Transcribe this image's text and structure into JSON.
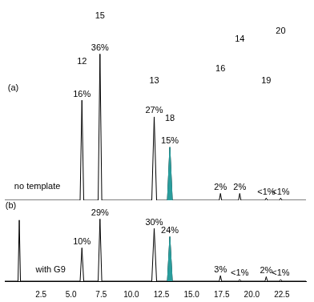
{
  "chart_data": [
    {
      "type": "line",
      "x": [
        -0.5,
        5.75,
        5.9,
        6.05,
        7.25,
        7.4,
        7.55,
        11.7,
        11.9,
        12.1,
        13.0,
        13.2,
        13.4,
        17.3,
        17.4,
        17.5,
        18.9,
        19.0,
        19.1,
        21.1,
        21.2,
        21.3,
        22.3,
        22.4,
        22.5,
        24.5
      ],
      "series": [
        {
          "type": "area",
          "color": "#2a9d9d",
          "values": [
            null,
            null,
            null,
            null,
            null,
            null,
            null,
            null,
            null,
            null,
            0,
            70,
            0,
            null,
            null,
            null,
            null,
            null,
            null,
            null,
            null,
            null,
            null,
            null,
            null,
            null
          ]
        },
        {
          "type": "line",
          "color": "#000000",
          "values": [
            0,
            0,
            132,
            0,
            0,
            193,
            0,
            0,
            110,
            0,
            0,
            70,
            0,
            0,
            9,
            0,
            0,
            9,
            0,
            0,
            3,
            0,
            0,
            3,
            0,
            0
          ]
        }
      ],
      "xlim": [
        -0.5,
        24.5
      ],
      "xticks": [
        2.5,
        {
          "value": 5,
          "label": "5.0"
        },
        7.5,
        {
          "value": 10,
          "label": "10.0"
        },
        12.5,
        {
          "value": 15,
          "label": "15.0"
        },
        17.5,
        {
          "value": 20,
          "label": "20.0"
        },
        22.5
      ],
      "ylim": [
        0,
        260
      ],
      "grid": false,
      "tick_labels": false,
      "annotations": [
        {
          "text": "(a)",
          "x": 0.2,
          "y": 140
        },
        {
          "text": "no template",
          "x": 2.2,
          "y": 10
        },
        {
          "text": "16%",
          "x": 5.9,
          "y": 132
        },
        {
          "text": "36%",
          "x": 7.4,
          "y": 193
        },
        {
          "text": "27%",
          "x": 11.9,
          "y": 110
        },
        {
          "text": "15%",
          "x": 13.2,
          "y": 70
        },
        {
          "text": "2%",
          "x": 17.4,
          "y": 9
        },
        {
          "text": "2%",
          "x": 19.0,
          "y": 9
        },
        {
          "text": "<1%",
          "x": 21.2,
          "y": 3
        },
        {
          "text": "<1%",
          "x": 22.4,
          "y": 3
        },
        {
          "text": "12",
          "x": 5.9,
          "y": 175
        },
        {
          "text": "15",
          "x": 7.4,
          "y": 235
        },
        {
          "text": "13",
          "x": 11.9,
          "y": 150
        },
        {
          "text": "18",
          "x": 13.2,
          "y": 100
        },
        {
          "text": "16",
          "x": 17.4,
          "y": 165
        },
        {
          "text": "14",
          "x": 19.0,
          "y": 205
        },
        {
          "text": "19",
          "x": 21.2,
          "y": 150
        },
        {
          "text": "20",
          "x": 22.4,
          "y": 215
        }
      ]
    },
    {
      "type": "line",
      "x": [
        -0.5,
        0.6,
        0.7,
        0.8,
        5.75,
        5.9,
        6.05,
        7.25,
        7.4,
        7.55,
        11.7,
        11.9,
        12.1,
        13.0,
        13.2,
        13.4,
        17.3,
        17.4,
        17.5,
        18.9,
        19.0,
        19.1,
        21.1,
        21.2,
        21.3,
        22.3,
        22.4,
        22.5,
        24.5
      ],
      "series": [
        {
          "type": "area",
          "color": "#2a9d9d",
          "values": [
            null,
            null,
            null,
            null,
            null,
            null,
            null,
            null,
            null,
            null,
            null,
            null,
            null,
            0,
            80,
            0,
            null,
            null,
            null,
            null,
            null,
            null,
            null,
            null,
            null,
            null,
            null,
            null,
            null
          ]
        },
        {
          "type": "line",
          "color": "#000000",
          "values": [
            0,
            0,
            110,
            0,
            0,
            60,
            0,
            0,
            112,
            0,
            0,
            95,
            0,
            0,
            80,
            0,
            0,
            10,
            0,
            0,
            3,
            0,
            0,
            8,
            0,
            0,
            3,
            0,
            0
          ]
        }
      ],
      "xlim": [
        -0.5,
        24.5
      ],
      "xticks": [
        2.5,
        {
          "value": 5,
          "label": "5.0"
        },
        7.5,
        {
          "value": 10,
          "label": "10.0"
        },
        12.5,
        {
          "value": 15,
          "label": "15.0"
        },
        17.5,
        {
          "value": 20,
          "label": "20.0"
        },
        22.5
      ],
      "ylim": [
        0,
        140
      ],
      "grid": false,
      "tick_labels": "x",
      "annotations": [
        {
          "text": "(b)",
          "x": 0.0,
          "y": 125
        },
        {
          "text": "with G9",
          "x": 3.3,
          "y": 10
        },
        {
          "text": "10%",
          "x": 5.9,
          "y": 60
        },
        {
          "text": "29%",
          "x": 7.4,
          "y": 112
        },
        {
          "text": "30%",
          "x": 11.9,
          "y": 95
        },
        {
          "text": "24%",
          "x": 13.2,
          "y": 80
        },
        {
          "text": "3%",
          "x": 17.4,
          "y": 10
        },
        {
          "text": "<1%",
          "x": 19.0,
          "y": 3
        },
        {
          "text": "2%",
          "x": 21.2,
          "y": 8
        },
        {
          "text": "<1%",
          "x": 22.4,
          "y": 3
        }
      ]
    }
  ]
}
